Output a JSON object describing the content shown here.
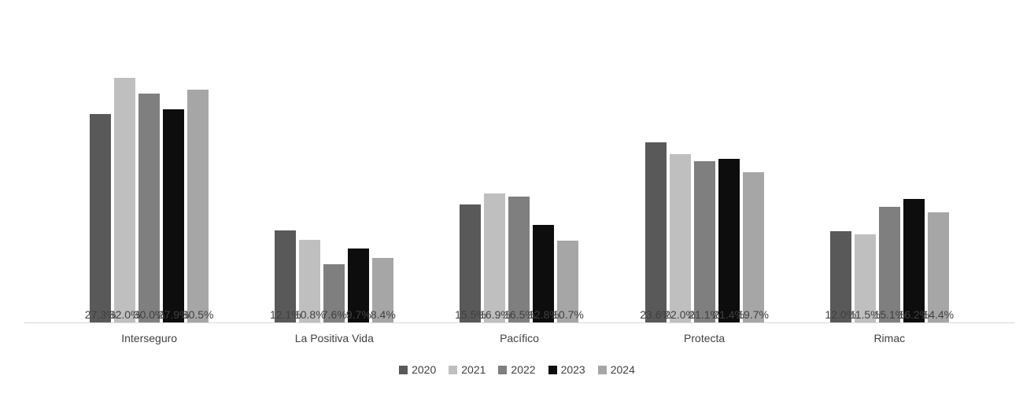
{
  "chart_data": {
    "type": "bar",
    "title": "",
    "categories": [
      "Interseguro",
      "La Positiva Vida",
      "Pacífico",
      "Protecta",
      "Rimac"
    ],
    "series": [
      {
        "name": "2020",
        "color": "#595959",
        "values": [
          27.3,
          12.1,
          15.5,
          23.6,
          12.0
        ]
      },
      {
        "name": "2021",
        "color": "#bfbfbf",
        "values": [
          32.0,
          10.8,
          16.9,
          22.0,
          11.5
        ]
      },
      {
        "name": "2022",
        "color": "#7f7f7f",
        "values": [
          30.0,
          7.6,
          16.5,
          21.1,
          15.1
        ]
      },
      {
        "name": "2023",
        "color": "#0d0d0d",
        "values": [
          27.9,
          9.7,
          12.8,
          21.4,
          16.2
        ]
      },
      {
        "name": "2024",
        "color": "#a6a6a6",
        "values": [
          30.5,
          8.4,
          10.7,
          19.7,
          14.4
        ]
      }
    ],
    "value_suffix": "%",
    "value_decimals": 1,
    "ylim": [
      0,
      34
    ],
    "grid": false,
    "data_labels": true,
    "legend_position": "bottom",
    "axis_line_color": "#d9d9d9",
    "label_color": "#404040",
    "background_color": "#ffffff"
  }
}
